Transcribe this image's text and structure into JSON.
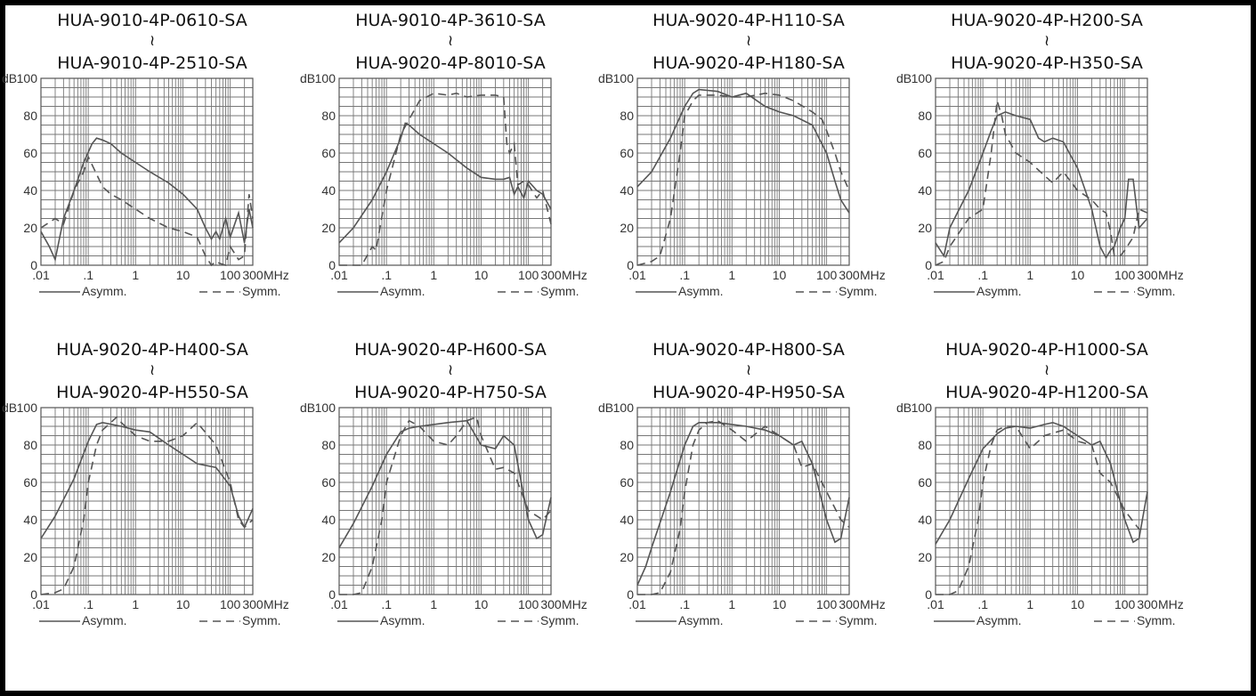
{
  "x_unit": "MHz",
  "chart_data": [
    {
      "type": "line",
      "title_line1": "HUA-9010-4P-0610-SA",
      "connector": "≀",
      "title_line2": "HUA-9010-4P-2510-SA",
      "ylabel": "dB",
      "ylim": [
        0,
        100
      ],
      "xlim": [
        0.01,
        300
      ],
      "xscale": "log",
      "x_ticks": [
        ".01",
        ".1",
        "1",
        "10",
        "100",
        "300"
      ],
      "y_ticks": [
        "0",
        "20",
        "40",
        "60",
        "80",
        "100"
      ],
      "x_unit": "MHz",
      "series": [
        {
          "name": "Asymm.",
          "style": "solid",
          "x": [
            0.01,
            0.015,
            0.02,
            0.03,
            0.05,
            0.08,
            0.12,
            0.15,
            0.2,
            0.3,
            0.5,
            1,
            2,
            5,
            10,
            20,
            30,
            40,
            50,
            60,
            80,
            100,
            150,
            200,
            250,
            300
          ],
          "y": [
            18,
            10,
            3,
            25,
            40,
            55,
            65,
            68,
            67,
            65,
            60,
            55,
            50,
            44,
            38,
            30,
            20,
            14,
            18,
            14,
            25,
            15,
            28,
            12,
            30,
            20
          ]
        },
        {
          "name": "Symm.",
          "style": "dashed",
          "x": [
            0.01,
            0.02,
            0.03,
            0.05,
            0.08,
            0.1,
            0.13,
            0.2,
            0.3,
            0.5,
            1,
            2,
            5,
            10,
            20,
            30,
            40,
            50,
            60,
            80,
            100,
            150,
            200,
            250,
            300
          ],
          "y": [
            20,
            25,
            22,
            40,
            50,
            58,
            52,
            42,
            38,
            35,
            30,
            25,
            20,
            18,
            15,
            5,
            0,
            2,
            1,
            0,
            10,
            3,
            5,
            38,
            25
          ]
        }
      ]
    },
    {
      "type": "line",
      "title_line1": "HUA-9010-4P-3610-SA",
      "connector": "≀",
      "title_line2": "HUA-9020-4P-8010-SA",
      "ylabel": "dB",
      "ylim": [
        0,
        100
      ],
      "xlim": [
        0.01,
        300
      ],
      "xscale": "log",
      "x_ticks": [
        ".01",
        ".1",
        "1",
        "10",
        "100",
        "300"
      ],
      "y_ticks": [
        "0",
        "20",
        "40",
        "60",
        "80",
        "100"
      ],
      "x_unit": "MHz",
      "series": [
        {
          "name": "Asymm.",
          "style": "solid",
          "x": [
            0.01,
            0.02,
            0.05,
            0.1,
            0.2,
            0.25,
            0.3,
            0.5,
            1,
            2,
            5,
            10,
            20,
            30,
            40,
            50,
            60,
            80,
            100,
            150,
            200,
            300
          ],
          "y": [
            12,
            20,
            35,
            50,
            68,
            76,
            75,
            70,
            65,
            60,
            52,
            47,
            46,
            46,
            47,
            38,
            42,
            36,
            45,
            40,
            38,
            30
          ]
        },
        {
          "name": "Symm.",
          "style": "dashed",
          "x": [
            0.01,
            0.03,
            0.05,
            0.06,
            0.1,
            0.2,
            0.5,
            1,
            2,
            3,
            5,
            10,
            20,
            30,
            35,
            40,
            50,
            60,
            80,
            100,
            150,
            200,
            300
          ],
          "y": [
            0,
            0,
            10,
            8,
            40,
            70,
            88,
            92,
            91,
            92,
            90,
            91,
            91,
            90,
            65,
            60,
            65,
            43,
            45,
            43,
            36,
            40,
            22
          ]
        }
      ]
    },
    {
      "type": "line",
      "title_line1": "HUA-9020-4P-H110-SA",
      "connector": "≀",
      "title_line2": "HUA-9020-4P-H180-SA",
      "ylabel": "dB",
      "ylim": [
        0,
        100
      ],
      "xlim": [
        0.01,
        300
      ],
      "xscale": "log",
      "x_ticks": [
        ".01",
        ".1",
        "1",
        "10",
        "100",
        "300"
      ],
      "y_ticks": [
        "0",
        "20",
        "40",
        "60",
        "80",
        "100"
      ],
      "x_unit": "MHz",
      "series": [
        {
          "name": "Asymm.",
          "style": "solid",
          "x": [
            0.01,
            0.02,
            0.05,
            0.1,
            0.15,
            0.2,
            0.5,
            1,
            2,
            5,
            10,
            20,
            50,
            100,
            150,
            200,
            300
          ],
          "y": [
            42,
            50,
            68,
            85,
            92,
            94,
            93,
            90,
            92,
            85,
            82,
            80,
            75,
            60,
            45,
            35,
            28
          ]
        },
        {
          "name": "Symm.",
          "style": "dashed",
          "x": [
            0.01,
            0.02,
            0.03,
            0.05,
            0.08,
            0.1,
            0.15,
            0.2,
            0.5,
            1,
            2,
            5,
            10,
            20,
            50,
            80,
            100,
            150,
            200,
            300
          ],
          "y": [
            0,
            2,
            5,
            25,
            60,
            80,
            88,
            91,
            91,
            90,
            90,
            92,
            91,
            88,
            82,
            78,
            72,
            60,
            50,
            40
          ]
        }
      ]
    },
    {
      "type": "line",
      "title_line1": "HUA-9020-4P-H200-SA",
      "connector": "≀",
      "title_line2": "HUA-9020-4P-H350-SA",
      "ylabel": "dB",
      "ylim": [
        0,
        100
      ],
      "xlim": [
        0.01,
        300
      ],
      "xscale": "log",
      "x_ticks": [
        ".01",
        ".1",
        "1",
        "10",
        "100",
        "300"
      ],
      "y_ticks": [
        "0",
        "20",
        "40",
        "60",
        "80",
        "100"
      ],
      "x_unit": "MHz",
      "series": [
        {
          "name": "Asymm.",
          "style": "solid",
          "x": [
            0.01,
            0.015,
            0.02,
            0.05,
            0.1,
            0.15,
            0.2,
            0.3,
            0.5,
            1,
            1.5,
            2,
            3,
            5,
            10,
            20,
            30,
            40,
            50,
            60,
            80,
            100,
            120,
            150,
            200,
            300
          ],
          "y": [
            12,
            5,
            20,
            40,
            60,
            72,
            80,
            82,
            80,
            78,
            68,
            66,
            68,
            66,
            52,
            30,
            10,
            4,
            8,
            10,
            20,
            25,
            46,
            46,
            20,
            25
          ]
        },
        {
          "name": "Symm.",
          "style": "dashed",
          "x": [
            0.01,
            0.015,
            0.02,
            0.05,
            0.1,
            0.15,
            0.2,
            0.25,
            0.3,
            0.5,
            1,
            2,
            3,
            5,
            10,
            20,
            30,
            40,
            50,
            60,
            80,
            100,
            150,
            200,
            300
          ],
          "y": [
            0,
            2,
            10,
            25,
            30,
            60,
            88,
            80,
            70,
            60,
            55,
            48,
            44,
            50,
            40,
            35,
            30,
            28,
            18,
            5,
            5,
            8,
            15,
            30,
            28
          ]
        }
      ]
    },
    {
      "type": "line",
      "title_line1": "HUA-9020-4P-H400-SA",
      "connector": "≀",
      "title_line2": "HUA-9020-4P-H550-SA",
      "ylabel": "dB",
      "ylim": [
        0,
        100
      ],
      "xlim": [
        0.01,
        300
      ],
      "xscale": "log",
      "x_ticks": [
        ".01",
        ".1",
        "1",
        "10",
        "100",
        "300"
      ],
      "y_ticks": [
        "0",
        "20",
        "40",
        "60",
        "80",
        "100"
      ],
      "x_unit": "MHz",
      "series": [
        {
          "name": "Asymm.",
          "style": "solid",
          "x": [
            0.01,
            0.02,
            0.05,
            0.1,
            0.15,
            0.2,
            0.5,
            1,
            2,
            5,
            10,
            20,
            50,
            100,
            150,
            200,
            300
          ],
          "y": [
            30,
            42,
            62,
            82,
            91,
            92,
            90,
            88,
            87,
            80,
            75,
            70,
            68,
            58,
            42,
            36,
            46
          ]
        },
        {
          "name": "Symm.",
          "style": "dashed",
          "x": [
            0.01,
            0.02,
            0.03,
            0.05,
            0.08,
            0.1,
            0.15,
            0.2,
            0.3,
            0.4,
            0.5,
            1,
            2,
            5,
            10,
            20,
            50,
            100,
            150,
            200,
            300
          ],
          "y": [
            0,
            1,
            3,
            15,
            40,
            60,
            80,
            88,
            92,
            95,
            92,
            85,
            82,
            82,
            85,
            92,
            80,
            60,
            40,
            36,
            40
          ]
        }
      ]
    },
    {
      "type": "line",
      "title_line1": "HUA-9020-4P-H600-SA",
      "connector": "≀",
      "title_line2": "HUA-9020-4P-H750-SA",
      "ylabel": "dB",
      "ylim": [
        0,
        100
      ],
      "xlim": [
        0.01,
        300
      ],
      "xscale": "log",
      "x_ticks": [
        ".01",
        ".1",
        "1",
        "10",
        "100",
        "300"
      ],
      "y_ticks": [
        "0",
        "20",
        "40",
        "60",
        "80",
        "100"
      ],
      "x_unit": "MHz",
      "series": [
        {
          "name": "Asymm.",
          "style": "solid",
          "x": [
            0.01,
            0.02,
            0.05,
            0.1,
            0.2,
            0.3,
            0.5,
            1,
            2,
            5,
            10,
            20,
            30,
            50,
            100,
            150,
            200,
            300
          ],
          "y": [
            25,
            38,
            58,
            75,
            87,
            89,
            90,
            91,
            92,
            93,
            80,
            78,
            85,
            80,
            40,
            30,
            32,
            52
          ]
        },
        {
          "name": "Symm.",
          "style": "dashed",
          "x": [
            0.01,
            0.02,
            0.03,
            0.05,
            0.08,
            0.1,
            0.2,
            0.3,
            0.5,
            1,
            2,
            3,
            5,
            8,
            10,
            20,
            30,
            50,
            100,
            200,
            300
          ],
          "y": [
            0,
            0,
            1,
            15,
            40,
            60,
            85,
            93,
            90,
            82,
            80,
            85,
            93,
            95,
            85,
            67,
            68,
            65,
            45,
            40,
            45
          ]
        }
      ]
    },
    {
      "type": "line",
      "title_line1": "HUA-9020-4P-H800-SA",
      "connector": "≀",
      "title_line2": "HUA-9020-4P-H950-SA",
      "ylabel": "dB",
      "ylim": [
        0,
        100
      ],
      "xlim": [
        0.01,
        300
      ],
      "xscale": "log",
      "x_ticks": [
        ".01",
        ".1",
        "1",
        "10",
        "100",
        "300"
      ],
      "y_ticks": [
        "0",
        "20",
        "40",
        "60",
        "80",
        "100"
      ],
      "x_unit": "MHz",
      "series": [
        {
          "name": "Asymm.",
          "style": "solid",
          "x": [
            0.01,
            0.015,
            0.02,
            0.05,
            0.1,
            0.15,
            0.2,
            0.5,
            1,
            2,
            5,
            10,
            20,
            30,
            50,
            100,
            150,
            200,
            300
          ],
          "y": [
            5,
            15,
            25,
            55,
            80,
            90,
            92,
            92,
            91,
            90,
            88,
            85,
            80,
            82,
            70,
            40,
            28,
            30,
            52
          ]
        },
        {
          "name": "Symm.",
          "style": "dashed",
          "x": [
            0.01,
            0.02,
            0.03,
            0.05,
            0.08,
            0.1,
            0.15,
            0.2,
            0.3,
            0.5,
            1,
            2,
            5,
            10,
            20,
            30,
            50,
            100,
            200,
            300
          ],
          "y": [
            0,
            0,
            1,
            12,
            35,
            55,
            80,
            88,
            92,
            93,
            88,
            82,
            90,
            85,
            80,
            68,
            70,
            55,
            40,
            36
          ]
        }
      ]
    },
    {
      "type": "line",
      "title_line1": "HUA-9020-4P-H1000-SA",
      "connector": "≀",
      "title_line2": "HUA-9020-4P-H1200-SA",
      "ylabel": "dB",
      "ylim": [
        0,
        100
      ],
      "xlim": [
        0.01,
        300
      ],
      "xscale": "log",
      "x_ticks": [
        ".01",
        ".1",
        "1",
        "10",
        "100",
        "300"
      ],
      "y_ticks": [
        "0",
        "20",
        "40",
        "60",
        "80",
        "100"
      ],
      "x_unit": "MHz",
      "series": [
        {
          "name": "Asymm.",
          "style": "solid",
          "x": [
            0.01,
            0.02,
            0.05,
            0.1,
            0.2,
            0.3,
            0.5,
            1,
            2,
            3,
            5,
            10,
            20,
            30,
            50,
            100,
            150,
            200,
            300
          ],
          "y": [
            27,
            40,
            62,
            78,
            86,
            89,
            90,
            89,
            91,
            92,
            90,
            85,
            80,
            82,
            70,
            40,
            28,
            30,
            55
          ]
        },
        {
          "name": "Symm.",
          "style": "dashed",
          "x": [
            0.01,
            0.02,
            0.03,
            0.05,
            0.08,
            0.1,
            0.15,
            0.2,
            0.3,
            0.5,
            1,
            2,
            5,
            10,
            20,
            30,
            50,
            100,
            200,
            300
          ],
          "y": [
            0,
            0,
            2,
            15,
            40,
            60,
            80,
            88,
            90,
            90,
            78,
            85,
            88,
            82,
            80,
            65,
            60,
            45,
            35,
            35
          ]
        }
      ]
    }
  ]
}
